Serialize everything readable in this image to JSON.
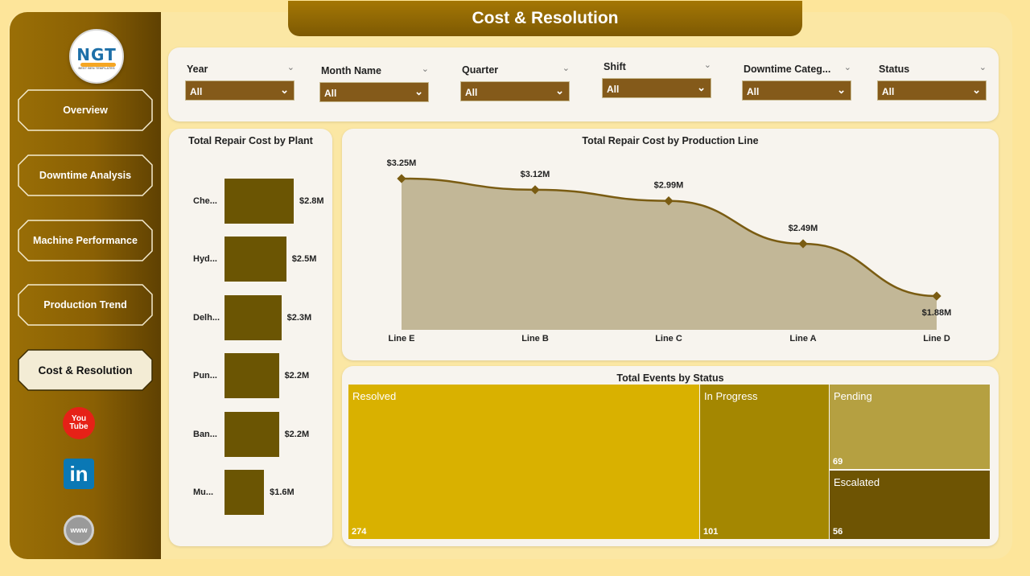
{
  "header": {
    "title": "Cost & Resolution"
  },
  "logo": {
    "text": "NGT",
    "subtitle": "BEST BEN TEMPLATES"
  },
  "sidebar": {
    "items": [
      {
        "label": "Overview"
      },
      {
        "label": "Downtime Analysis"
      },
      {
        "label": "Machine Performance"
      },
      {
        "label": "Production Trend"
      },
      {
        "label": "Cost & Resolution",
        "active": true
      }
    ],
    "social": {
      "youtube": "You Tube",
      "linkedin": "in",
      "web": "www"
    }
  },
  "filters": [
    {
      "label": "Year",
      "value": "All"
    },
    {
      "label": "Month Name",
      "value": "All"
    },
    {
      "label": "Quarter",
      "value": "All"
    },
    {
      "label": "Shift",
      "value": "All"
    },
    {
      "label": "Downtime Categ...",
      "value": "All"
    },
    {
      "label": "Status",
      "value": "All"
    }
  ],
  "colors": {
    "accent": "#845a1a",
    "bar": "#6b5503",
    "line": "#7a5c12",
    "area": "#c2b797"
  },
  "chart_data": [
    {
      "type": "bar",
      "title": "Total Repair Cost by Plant",
      "categories": [
        "Che...",
        "Hyd...",
        "Delh...",
        "Pun...",
        "Ban...",
        "Mu..."
      ],
      "values": [
        2.8,
        2.5,
        2.3,
        2.2,
        2.2,
        1.6
      ],
      "labels": [
        "$2.8M",
        "$2.5M",
        "$2.3M",
        "$2.2M",
        "$2.2M",
        "$1.6M"
      ]
    },
    {
      "type": "area",
      "title": "Total Repair Cost by Production Line",
      "categories": [
        "Line E",
        "Line B",
        "Line C",
        "Line A",
        "Line D"
      ],
      "values": [
        3.25,
        3.12,
        2.99,
        2.49,
        1.88
      ],
      "labels": [
        "$3.25M",
        "$3.12M",
        "$2.99M",
        "$2.49M",
        "$1.88M"
      ]
    },
    {
      "type": "treemap",
      "title": "Total Events by Status",
      "categories": [
        "Resolved",
        "In Progress",
        "Pending",
        "Escalated"
      ],
      "values": [
        274,
        101,
        69,
        56
      ],
      "colors": [
        "#d9b100",
        "#a48701",
        "#b5a041",
        "#6e5403"
      ]
    }
  ]
}
